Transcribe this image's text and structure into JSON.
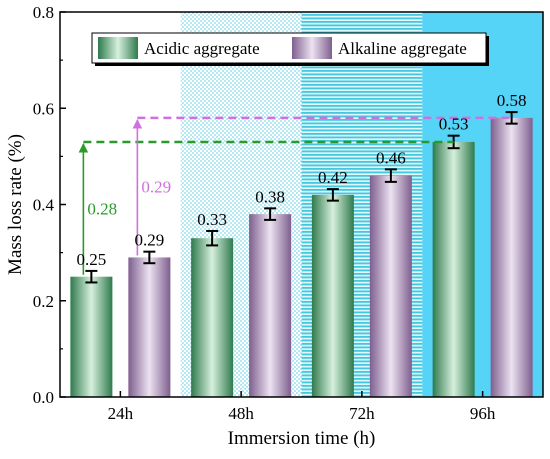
{
  "chart_data": {
    "type": "bar",
    "title": "",
    "xlabel": "Immersion time (h)",
    "ylabel": "Mass loss rate (%)",
    "ylim": [
      0,
      0.8
    ],
    "yticks": [
      "0.0",
      "0.2",
      "0.4",
      "0.6",
      "0.8"
    ],
    "categories": [
      "24h",
      "48h",
      "72h",
      "96h"
    ],
    "series": [
      {
        "name": "Acidic aggregate",
        "values": [
          0.25,
          0.33,
          0.42,
          0.53
        ],
        "labels": [
          "0.25",
          "0.33",
          "0.42",
          "0.53"
        ],
        "error": [
          0.012,
          0.015,
          0.012,
          0.013
        ],
        "color": "#5fa87a"
      },
      {
        "name": "Alkaline aggregate",
        "values": [
          0.29,
          0.38,
          0.46,
          0.58
        ],
        "labels": [
          "0.29",
          "0.38",
          "0.46",
          "0.58"
        ],
        "error": [
          0.012,
          0.012,
          0.013,
          0.012
        ],
        "color": "#a98ab8"
      }
    ],
    "legend_position": "top-center",
    "annotations": [
      {
        "series": "Acidic aggregate",
        "label": "0.28",
        "from": 0.25,
        "to": 0.53,
        "color": "#2a9a2a"
      },
      {
        "series": "Alkaline aggregate",
        "label": "0.29",
        "from": 0.29,
        "to": 0.58,
        "color": "#d070e0"
      }
    ],
    "backgrounds": [
      {
        "category": "48h",
        "pattern": "dots",
        "color": "#cfeef6"
      },
      {
        "category": "72h",
        "pattern": "horizontal-lines",
        "color": "#54cfe2"
      },
      {
        "category": "96h",
        "pattern": "solid",
        "color": "#55d4f7"
      }
    ]
  }
}
